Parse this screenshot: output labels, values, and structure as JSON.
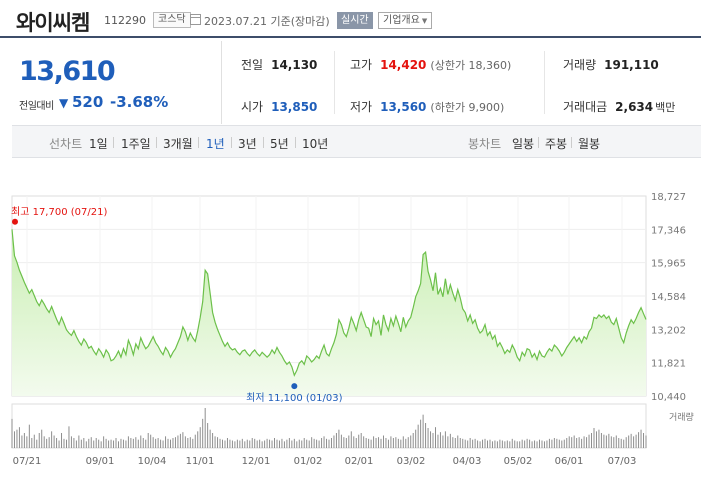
{
  "header": {
    "name": "와이씨켐",
    "code": "112290",
    "market": "코스닥",
    "date": "2023.07.21 기준(장마감)",
    "realtime": "실시간",
    "overview": "기업개요"
  },
  "price": {
    "current": "13,610",
    "change_label": "전일대비",
    "change_value": "520",
    "change_pct": "-3.68%"
  },
  "stats": {
    "prev_close": {
      "label": "전일",
      "value": "14,130"
    },
    "high": {
      "label": "고가",
      "value": "14,420",
      "limit_label": "(상한가 18,360)"
    },
    "volume": {
      "label": "거래량",
      "value": "191,110"
    },
    "open": {
      "label": "시가",
      "value": "13,850"
    },
    "low": {
      "label": "저가",
      "value": "13,560",
      "limit_label": "(하한가 9,900)"
    },
    "amount": {
      "label": "거래대금",
      "value": "2,634",
      "unit": "백만"
    }
  },
  "line_tabs": {
    "label": "선차트",
    "items": [
      "1일",
      "1주일",
      "3개월",
      "1년",
      "3년",
      "5년",
      "10년"
    ],
    "active": "1년"
  },
  "candle_tabs": {
    "label": "봉차트",
    "items": [
      "일봉",
      "주봉",
      "월봉"
    ]
  },
  "colors": {
    "rise": "#e4130f",
    "fall": "#1f5eba",
    "line": "#6cc04a",
    "fill_top": "#c9eeb2",
    "fill_bottom": "#f3fbee"
  },
  "chart_data": {
    "type": "area",
    "x_ticks": [
      "07/21",
      "09/01",
      "10/04",
      "11/01",
      "12/01",
      "01/02",
      "02/01",
      "03/02",
      "04/03",
      "05/02",
      "06/01",
      "07/03"
    ],
    "y_ticks": [
      "18,727",
      "17,346",
      "15,965",
      "14,584",
      "13,202",
      "11,821",
      "10,440"
    ],
    "ylim": [
      10440,
      18727
    ],
    "high_label": "최고 17,700 (07/21)",
    "low_label": "최저 11,100 (01/03)",
    "high": {
      "index": 0,
      "value": 17700
    },
    "low": {
      "index": 114,
      "value": 11100
    },
    "volume_label": "거래량",
    "series": [
      {
        "values": [
          17346,
          16250,
          15980,
          15650,
          15400,
          15150,
          14920,
          14700,
          14850,
          14600,
          14350,
          14180,
          14420,
          14250,
          14050,
          13900,
          14150,
          13880,
          13620,
          13400,
          13700,
          13450,
          13180,
          13050,
          12950,
          13150,
          12900,
          12700,
          12550,
          12800,
          12650,
          12420,
          12500,
          12300,
          12150,
          12400,
          12250,
          12050,
          12350,
          12200,
          11900,
          11950,
          12100,
          12300,
          12050,
          12400,
          12150,
          12750,
          12500,
          12150,
          12600,
          12400,
          12850,
          12600,
          12400,
          12500,
          12700,
          12900,
          12650,
          12500,
          12300,
          12150,
          12450,
          12300,
          12050,
          12250,
          12400,
          12650,
          12900,
          13300,
          13100,
          12750,
          13050,
          12850,
          12700,
          13150,
          13700,
          14350,
          15650,
          15500,
          14700,
          13900,
          13500,
          13200,
          12950,
          12700,
          12500,
          12650,
          12450,
          12350,
          12400,
          12250,
          12150,
          12300,
          12350,
          12200,
          12100,
          12250,
          12350,
          12200,
          12100,
          12250,
          12150,
          12050,
          12150,
          12350,
          12200,
          12450,
          12250,
          12100,
          11900,
          11750,
          11850,
          11650,
          11300,
          11500,
          11800,
          11900,
          11750,
          12100,
          12000,
          11850,
          11950,
          12100,
          12000,
          12300,
          12550,
          12200,
          12100,
          12400,
          12650,
          13000,
          13600,
          13400,
          13050,
          12900,
          13250,
          13700,
          13450,
          13150,
          13600,
          13900,
          13600,
          13300,
          13250,
          12900,
          13650,
          13400,
          13550,
          12950,
          13800,
          13400,
          13150,
          13650,
          13350,
          13750,
          13450,
          13100,
          13700,
          13300,
          13550,
          13700,
          14100,
          14550,
          14800,
          15100,
          16300,
          16400,
          15600,
          15250,
          14800,
          15550,
          14650,
          14900,
          14550,
          15300,
          14650,
          15050,
          14700,
          14400,
          14850,
          14500,
          14050,
          13900,
          13550,
          13800,
          13450,
          13600,
          13250,
          13050,
          13150,
          13400,
          12950,
          13100,
          12800,
          12950,
          12500,
          12650,
          12450,
          12200,
          12350,
          12250,
          12550,
          12350,
          12050,
          11900,
          12250,
          12100,
          12400,
          12350,
          12050,
          12200,
          11950,
          12300,
          12100,
          12050,
          12250,
          12400,
          12300,
          12550,
          12450,
          12300,
          12100,
          12250,
          12450,
          12600,
          12750,
          12900,
          12700,
          12850,
          12650,
          12900,
          12800,
          13100,
          13250,
          13700,
          13650,
          13800,
          13700,
          13800,
          13650,
          13750,
          13500,
          13400,
          13650,
          13250,
          12850,
          12650,
          13050,
          13350,
          13600,
          13450,
          13650,
          13900,
          14100,
          13850,
          13610
        ]
      }
    ],
    "volume": {
      "values": [
        35,
        20,
        22,
        25,
        15,
        18,
        14,
        28,
        12,
        16,
        10,
        18,
        22,
        14,
        11,
        13,
        20,
        15,
        12,
        9,
        18,
        11,
        10,
        26,
        14,
        12,
        9,
        15,
        10,
        12,
        8,
        11,
        13,
        9,
        12,
        10,
        8,
        14,
        11,
        9,
        10,
        9,
        12,
        8,
        11,
        10,
        9,
        14,
        12,
        11,
        13,
        10,
        15,
        12,
        10,
        18,
        16,
        13,
        11,
        12,
        10,
        9,
        14,
        11,
        10,
        12,
        13,
        15,
        17,
        19,
        14,
        12,
        13,
        11,
        16,
        20,
        25,
        35,
        48,
        30,
        22,
        18,
        14,
        13,
        11,
        10,
        9,
        12,
        10,
        9,
        8,
        10,
        9,
        11,
        8,
        10,
        9,
        12,
        11,
        9,
        10,
        8,
        9,
        11,
        10,
        9,
        12,
        10,
        9,
        11,
        8,
        10,
        12,
        9,
        11,
        8,
        10,
        9,
        12,
        10,
        9,
        13,
        11,
        10,
        9,
        12,
        14,
        11,
        10,
        12,
        15,
        18,
        22,
        16,
        13,
        12,
        15,
        20,
        14,
        12,
        16,
        18,
        14,
        12,
        11,
        10,
        14,
        12,
        13,
        11,
        15,
        12,
        10,
        14,
        12,
        13,
        11,
        10,
        14,
        11,
        13,
        15,
        18,
        22,
        28,
        34,
        40,
        30,
        24,
        20,
        18,
        25,
        16,
        19,
        15,
        20,
        14,
        17,
        13,
        12,
        15,
        12,
        11,
        10,
        9,
        12,
        10,
        11,
        9,
        8,
        10,
        11,
        9,
        10,
        8,
        9,
        8,
        10,
        9,
        8,
        9,
        8,
        11,
        9,
        8,
        8,
        10,
        9,
        11,
        10,
        8,
        9,
        8,
        10,
        9,
        8,
        9,
        11,
        10,
        12,
        11,
        10,
        9,
        10,
        12,
        14,
        13,
        15,
        12,
        13,
        11,
        14,
        13,
        16,
        18,
        24,
        20,
        22,
        18,
        16,
        15,
        17,
        14,
        13,
        15,
        12,
        11,
        10,
        13,
        15,
        17,
        14,
        16,
        19,
        22,
        18,
        15
      ]
    }
  }
}
